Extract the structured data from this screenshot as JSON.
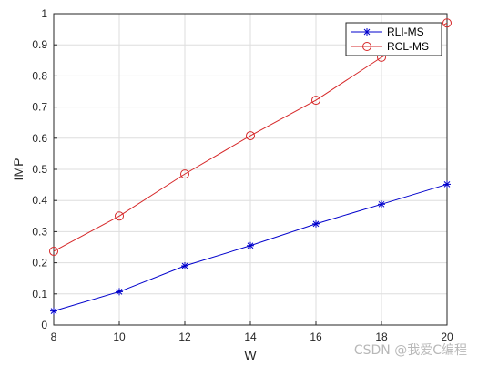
{
  "chart_data": {
    "type": "line",
    "title": "",
    "xlabel": "W",
    "ylabel": "IMP",
    "xlim": [
      8,
      20
    ],
    "ylim": [
      0,
      1
    ],
    "x_ticks": [
      "8",
      "10",
      "12",
      "14",
      "16",
      "18",
      "20"
    ],
    "y_ticks": [
      "0",
      "0.1",
      "0.2",
      "0.3",
      "0.4",
      "0.5",
      "0.6",
      "0.7",
      "0.8",
      "0.9",
      "1"
    ],
    "grid": true,
    "legend_position": "top-right",
    "x": [
      8,
      10,
      12,
      14,
      16,
      18,
      20
    ],
    "series": [
      {
        "name": "RLI-MS",
        "color": "#0000cc",
        "marker": "asterisk",
        "values": [
          0.045,
          0.107,
          0.19,
          0.255,
          0.325,
          0.388,
          0.452
        ]
      },
      {
        "name": "RCL-MS",
        "color": "#d62728",
        "marker": "circle",
        "values": [
          0.237,
          0.35,
          0.485,
          0.608,
          0.722,
          0.86,
          0.97
        ]
      }
    ]
  },
  "watermark": "CSDN @我爱C编程"
}
